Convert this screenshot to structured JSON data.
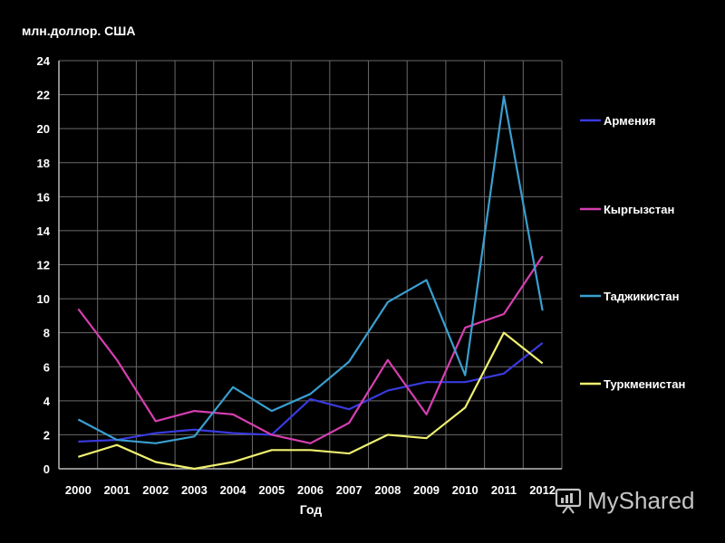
{
  "unit_label": "млн.доллор. США",
  "watermark": {
    "text": "MyShared",
    "icon": "presentation-icon"
  },
  "colors": {
    "background": "#000000",
    "grid": "#6a6a6a",
    "axis": "#bbbbbb",
    "text": "#ffffff",
    "series": [
      "#3a3ae0",
      "#d63fb0",
      "#3a9fd0",
      "#f0f070"
    ]
  },
  "chart_data": {
    "type": "line",
    "title": "",
    "xlabel": "Год",
    "ylabel": "млн.доллор. США",
    "categories": [
      "2000",
      "2001",
      "2002",
      "2003",
      "2004",
      "2005",
      "2006",
      "2007",
      "2008",
      "2009",
      "2010",
      "2011",
      "2012"
    ],
    "ylim": [
      0,
      24
    ],
    "yticks": [
      0,
      2,
      4,
      6,
      8,
      10,
      12,
      14,
      16,
      18,
      20,
      22,
      24
    ],
    "grid": true,
    "legend_position": "right",
    "series": [
      {
        "name": "Армения",
        "color": "#3a3ae0",
        "values": [
          1.6,
          1.7,
          2.1,
          2.3,
          2.1,
          2.0,
          4.1,
          3.5,
          4.6,
          5.1,
          5.1,
          5.6,
          7.4
        ]
      },
      {
        "name": "Кыргызстан",
        "color": "#d63fb0",
        "values": [
          9.4,
          6.4,
          2.8,
          3.4,
          3.2,
          2.0,
          1.5,
          2.7,
          6.4,
          3.2,
          8.3,
          9.1,
          12.5
        ]
      },
      {
        "name": "Таджикистан",
        "color": "#3a9fd0",
        "values": [
          2.9,
          1.7,
          1.5,
          1.9,
          4.8,
          3.4,
          4.4,
          6.3,
          9.8,
          11.1,
          5.5,
          21.9,
          9.3
        ]
      },
      {
        "name": "Туркменистан",
        "color": "#f0f070",
        "values": [
          0.7,
          1.4,
          0.4,
          0.0,
          0.4,
          1.1,
          1.1,
          0.9,
          2.0,
          1.8,
          3.6,
          8.0,
          6.2
        ]
      }
    ]
  }
}
